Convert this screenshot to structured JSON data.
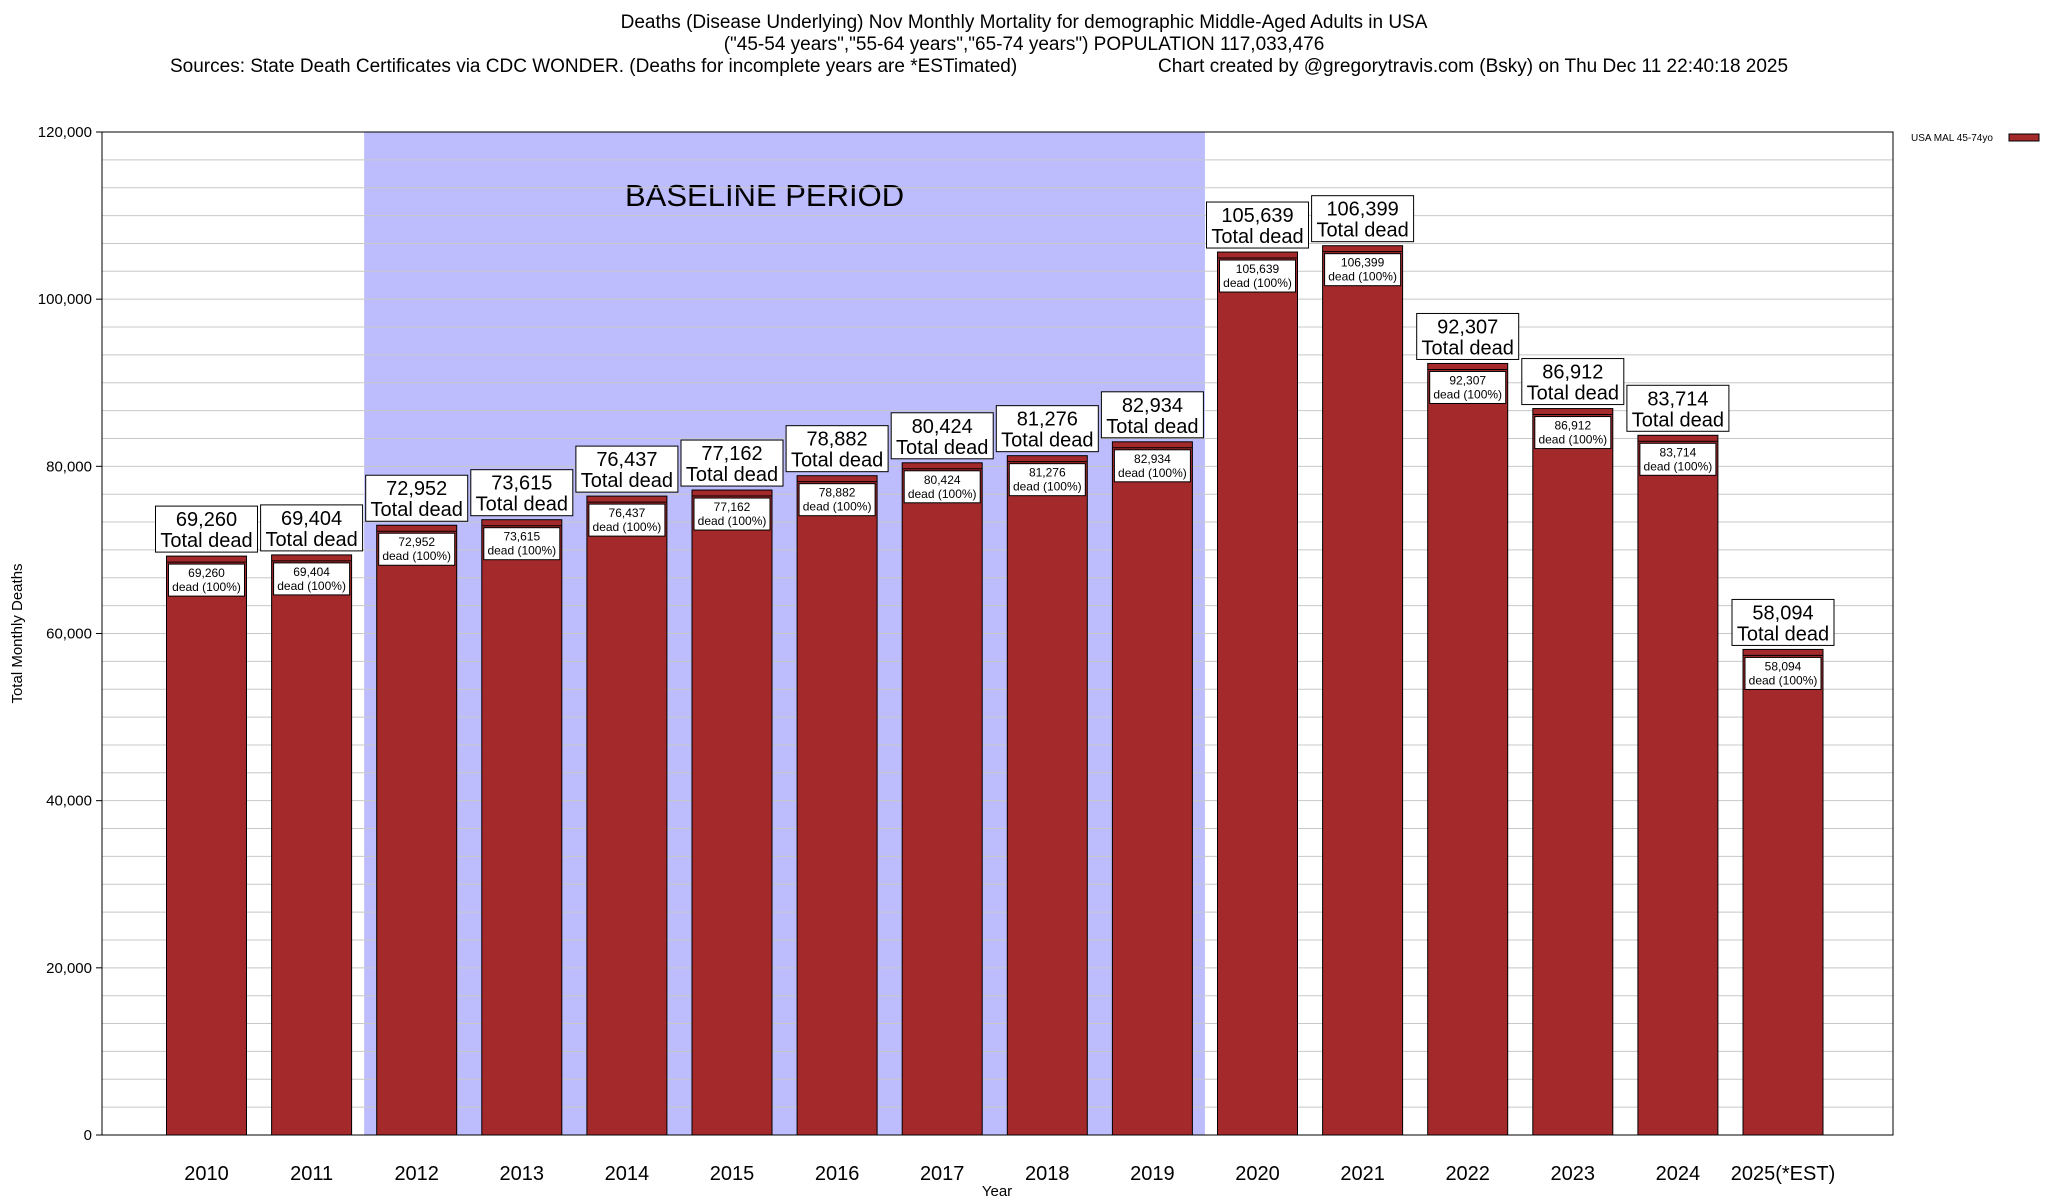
{
  "header": {
    "title_line1": "Deaths (Disease Underlying) Nov Monthly Mortality for demographic Middle-Aged Adults in USA",
    "title_line2": "(\"45-54 years\",\"55-64 years\",\"65-74 years\") POPULATION 117,033,476",
    "sources": "Sources: State Death Certificates via CDC WONDER. (Deaths for incomplete years are *ESTimated)",
    "credit": "Chart created by @gregorytravis.com (Bsky) on Thu Dec 11 22:40:18 2025"
  },
  "colors": {
    "bar": "#a3292b",
    "bar_outline": "#000000",
    "baseline_band": "#bdbdfd",
    "grid": "#c8c8c8",
    "background": "#ffffff"
  },
  "chart_data": {
    "type": "bar",
    "xlabel": "Year",
    "ylabel": "Total Monthly Deaths",
    "ylim": [
      0,
      120000
    ],
    "yticks": [
      0,
      20000,
      40000,
      60000,
      80000,
      100000,
      120000
    ],
    "ytick_labels": [
      "0",
      "20,000",
      "40,000",
      "60,000",
      "80,000",
      "100,000",
      "120,000"
    ],
    "grid": true,
    "legend": {
      "position": "top-right",
      "entries": [
        {
          "name": "USA MAL 45-74yo",
          "color": "#a3292b"
        }
      ]
    },
    "categories": [
      "2010",
      "2011",
      "2012",
      "2013",
      "2014",
      "2015",
      "2016",
      "2017",
      "2018",
      "2019",
      "2020",
      "2021",
      "2022",
      "2023",
      "2024",
      "2025(*EST)"
    ],
    "series": [
      {
        "name": "USA MAL 45-74yo",
        "values": [
          69260,
          69404,
          72952,
          73615,
          76437,
          77162,
          78882,
          80424,
          81276,
          82934,
          105639,
          106399,
          92307,
          86912,
          83714,
          58094
        ]
      }
    ],
    "value_labels": [
      "69,260",
      "69,404",
      "72,952",
      "73,615",
      "76,437",
      "77,162",
      "78,882",
      "80,424",
      "81,276",
      "82,934",
      "105,639",
      "106,399",
      "92,307",
      "86,912",
      "83,714",
      "58,094"
    ],
    "total_label": "Total dead",
    "inner_label": "dead (100%)",
    "annotations": [
      {
        "text": "BASELINE PERIOD",
        "from_category": "2012",
        "to_category": "2019"
      }
    ]
  }
}
